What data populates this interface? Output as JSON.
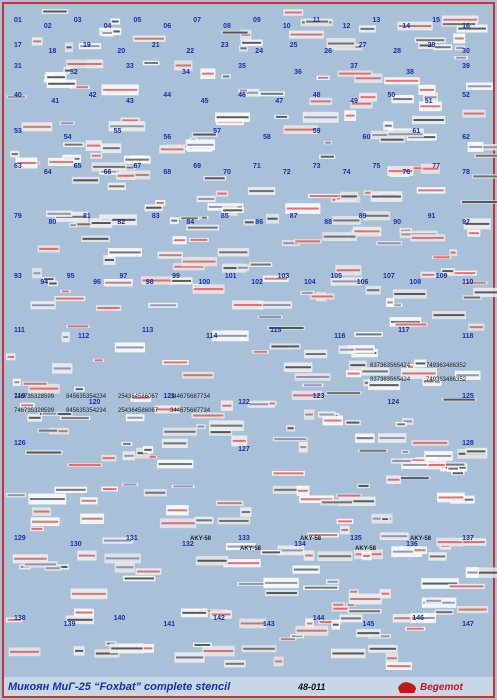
{
  "sheet": {
    "title": "Микоян МиГ-25 “Foxbat” complete stencil",
    "code": "48-011",
    "brand": "Begemot",
    "numbers": [
      "01",
      "02",
      "03",
      "04",
      "05",
      "06",
      "07",
      "08",
      "09",
      "10",
      "11",
      "12",
      "13",
      "14",
      "15",
      "16",
      "17",
      "18",
      "19",
      "20",
      "21",
      "22",
      "23",
      "24",
      "25",
      "26",
      "27",
      "28",
      "29",
      "30",
      "31",
      "32",
      "33",
      "34",
      "35",
      "36",
      "37",
      "38",
      "39",
      "40",
      "41",
      "42",
      "43",
      "44",
      "45",
      "46",
      "47",
      "48",
      "49",
      "50",
      "51",
      "52",
      "53",
      "54",
      "55",
      "56",
      "57",
      "58",
      "59",
      "60",
      "61",
      "62",
      "63",
      "64",
      "65",
      "66",
      "67",
      "68",
      "69",
      "70",
      "71",
      "72",
      "73",
      "74",
      "75",
      "76",
      "77",
      "78",
      "79",
      "80",
      "81",
      "82",
      "83",
      "84",
      "85",
      "86",
      "87",
      "88",
      "89",
      "90",
      "91",
      "92",
      "93",
      "94",
      "95",
      "96",
      "97",
      "98",
      "99",
      "100",
      "101",
      "102",
      "103",
      "104",
      "105",
      "106",
      "107",
      "108",
      "109",
      "110",
      "111",
      "112",
      "113",
      "114",
      "115",
      "116",
      "117",
      "118",
      "119",
      "120",
      "121",
      "122",
      "123",
      "124",
      "125",
      "126",
      "127",
      "128",
      "129",
      "130",
      "131",
      "132",
      "133",
      "134",
      "135",
      "136",
      "137",
      "138",
      "139",
      "140",
      "141",
      "142",
      "143",
      "144",
      "145",
      "146",
      "147"
    ],
    "serials": [
      "746735328599",
      "845635354234",
      "254364586067",
      "344675687734",
      "837363565424",
      "749363486352"
    ],
    "marking": "AKY-58"
  }
}
